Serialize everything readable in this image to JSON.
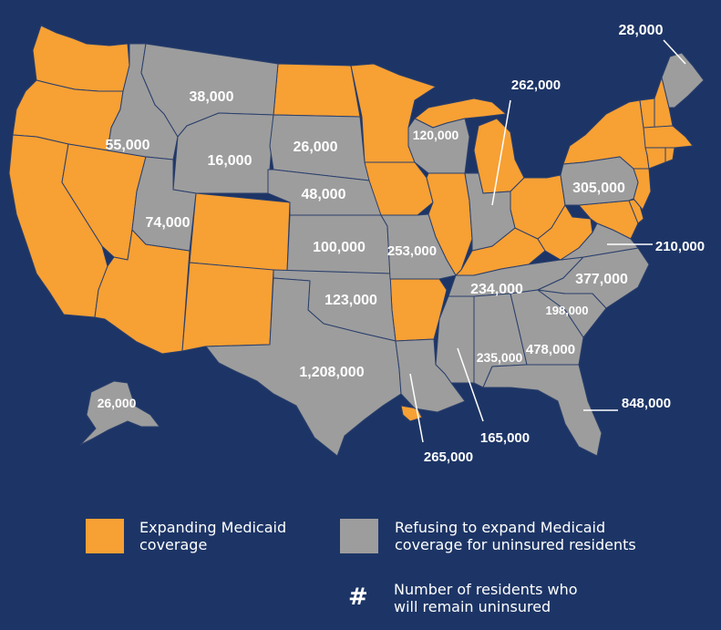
{
  "colors": {
    "background": "#1d3566",
    "expanding": "#f7a034",
    "refusing": "#9d9d9d",
    "border": "#2a3f6c"
  },
  "legend": {
    "expanding": "Expanding Medicaid coverage",
    "refusing": "Refusing to expand Medicaid coverage for uninsured residents",
    "symbol": "#",
    "number_note": "Number of residents who will remain uninsured"
  },
  "states": {
    "expanding": [
      "WA",
      "OR",
      "CA",
      "NV",
      "AZ",
      "CO",
      "NM",
      "ND",
      "MN",
      "IA",
      "IL",
      "MI",
      "AR",
      "KY",
      "OH",
      "WV",
      "MD",
      "DE",
      "NJ",
      "NY",
      "VT",
      "NH",
      "MA",
      "CT",
      "RI",
      "HI"
    ],
    "refusing": [
      "ID",
      "MT",
      "WY",
      "UT",
      "SD",
      "NE",
      "KS",
      "OK",
      "TX",
      "MO",
      "WI",
      "IN",
      "LA",
      "MS",
      "AL",
      "TN",
      "GA",
      "FL",
      "SC",
      "NC",
      "VA",
      "PA",
      "ME",
      "AK"
    ]
  },
  "labels": {
    "ME": "28,000",
    "MI_WI": "262,000",
    "MT": "38,000",
    "ID": "55,000",
    "WY": "16,000",
    "SD": "26,000",
    "WI": "120,000",
    "NE": "48,000",
    "UT": "74,000",
    "PA": "305,000",
    "KS": "100,000",
    "MO": "253,000",
    "VA": "210,000",
    "NC": "377,000",
    "TN": "234,000",
    "OK": "123,000",
    "SC": "198,000",
    "GA": "478,000",
    "AL": "235,000",
    "TX": "1,208,000",
    "FL": "848,000",
    "AK": "26,000",
    "MS": "165,000",
    "LA": "265,000"
  }
}
